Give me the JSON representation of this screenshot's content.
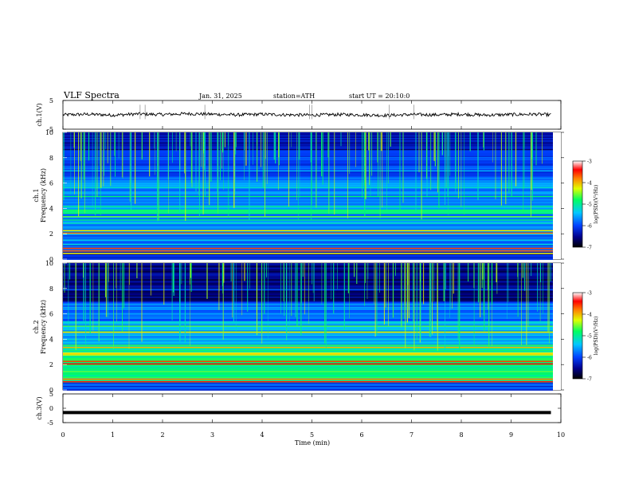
{
  "header": {
    "title": "VLF Spectra",
    "date": "Jan. 31, 2025",
    "station": "station=ATH",
    "start": "start UT =  20:10:0"
  },
  "colorbar": {
    "label": "log(PSD)(V²/Hz)",
    "ticks": [
      "-3",
      "-4",
      "-5",
      "-6",
      "-7"
    ]
  },
  "chart_data": [
    {
      "type": "line",
      "name": "ch1-waveform",
      "ylabel": "ch.1(V)",
      "ylim": [
        -5,
        5
      ],
      "yticks": [
        "5",
        "-5"
      ],
      "xlim": [
        0,
        10
      ],
      "x": [
        0,
        0.5,
        1,
        1.5,
        2,
        2.5,
        3,
        3.5,
        4,
        4.5,
        5,
        5.5,
        6,
        6.5,
        7,
        7.5,
        8,
        8.5,
        9,
        9.5,
        9.8
      ],
      "y": [
        0,
        0.2,
        -0.1,
        0.3,
        0.1,
        0.4,
        0.2,
        0,
        0.2,
        0,
        -0.1,
        0.1,
        0,
        -0.2,
        0.1,
        0,
        0.2,
        -0.1,
        0.1,
        0.2,
        0
      ]
    },
    {
      "type": "heatmap",
      "name": "ch1-spectrogram",
      "ylabel": "Frequency (kHz)",
      "channel_label": "ch.1",
      "ylim": [
        0,
        10
      ],
      "yticks": [
        "0",
        "2",
        "4",
        "6",
        "8",
        "10"
      ],
      "xlim": [
        0,
        10
      ],
      "colorscale": "log(PSD) -7 to -3"
    },
    {
      "type": "heatmap",
      "name": "ch2-spectrogram",
      "ylabel": "Frequency (kHz)",
      "channel_label": "ch.2",
      "ylim": [
        0,
        10
      ],
      "yticks": [
        "0",
        "2",
        "4",
        "6",
        "8",
        "10"
      ],
      "xlim": [
        0,
        10
      ],
      "colorscale": "log(PSD) -7 to -3"
    },
    {
      "type": "line",
      "name": "ch3-waveform",
      "ylabel": "ch.3(V)",
      "ylim": [
        -5,
        5
      ],
      "yticks": [
        "5",
        "0",
        "-5"
      ],
      "xlim": [
        0,
        10
      ],
      "x": [
        0,
        9.8
      ],
      "y": [
        -1.5,
        -1.5
      ]
    }
  ],
  "xaxis": {
    "label": "Time (min)",
    "ticks": [
      "0",
      "1",
      "2",
      "3",
      "4",
      "5",
      "6",
      "7",
      "8",
      "9",
      "10"
    ]
  }
}
